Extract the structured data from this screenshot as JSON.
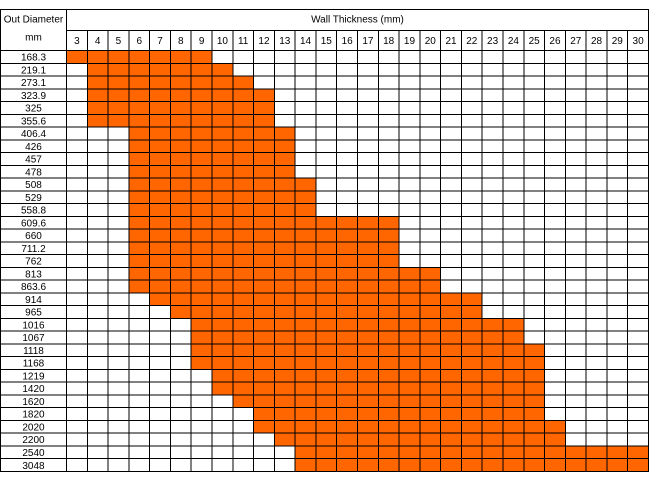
{
  "table": {
    "corner": [
      "Out Diameter",
      "mm"
    ],
    "group_header": "Wall Thickness (mm)",
    "columns": [
      3,
      4,
      5,
      6,
      7,
      8,
      9,
      10,
      11,
      12,
      13,
      14,
      15,
      16,
      17,
      18,
      19,
      20,
      21,
      22,
      23,
      24,
      25,
      26,
      27,
      28,
      29,
      30
    ],
    "fill_color": "#ff6600",
    "rows": [
      {
        "od": "168.3",
        "min": 3,
        "max": 9
      },
      {
        "od": "219.1",
        "min": 4,
        "max": 10
      },
      {
        "od": "273.1",
        "min": 4,
        "max": 11
      },
      {
        "od": "323.9",
        "min": 4,
        "max": 12
      },
      {
        "od": "325",
        "min": 4,
        "max": 12
      },
      {
        "od": "355.6",
        "min": 4,
        "max": 12
      },
      {
        "od": "406.4",
        "min": 6,
        "max": 13
      },
      {
        "od": "426",
        "min": 6,
        "max": 13
      },
      {
        "od": "457",
        "min": 6,
        "max": 13
      },
      {
        "od": "478",
        "min": 6,
        "max": 13
      },
      {
        "od": "508",
        "min": 6,
        "max": 14
      },
      {
        "od": "529",
        "min": 6,
        "max": 14
      },
      {
        "od": "558.8",
        "min": 6,
        "max": 14
      },
      {
        "od": "609.6",
        "min": 6,
        "max": 18
      },
      {
        "od": "660",
        "min": 6,
        "max": 18
      },
      {
        "od": "711.2",
        "min": 6,
        "max": 18
      },
      {
        "od": "762",
        "min": 6,
        "max": 18
      },
      {
        "od": "813",
        "min": 6,
        "max": 20
      },
      {
        "od": "863.6",
        "min": 6,
        "max": 20
      },
      {
        "od": "914",
        "min": 7,
        "max": 22
      },
      {
        "od": "965",
        "min": 8,
        "max": 22
      },
      {
        "od": "1016",
        "min": 9,
        "max": 24
      },
      {
        "od": "1067",
        "min": 9,
        "max": 24
      },
      {
        "od": "1118",
        "min": 9,
        "max": 25
      },
      {
        "od": "1168",
        "min": 9,
        "max": 25
      },
      {
        "od": "1219",
        "min": 10,
        "max": 25
      },
      {
        "od": "1420",
        "min": 10,
        "max": 25
      },
      {
        "od": "1620",
        "min": 11,
        "max": 25
      },
      {
        "od": "1820",
        "min": 12,
        "max": 25
      },
      {
        "od": "2020",
        "min": 12,
        "max": 26
      },
      {
        "od": "2200",
        "min": 13,
        "max": 26
      },
      {
        "od": "2540",
        "min": 14,
        "max": 30
      },
      {
        "od": "3048",
        "min": 14,
        "max": 30
      }
    ]
  }
}
